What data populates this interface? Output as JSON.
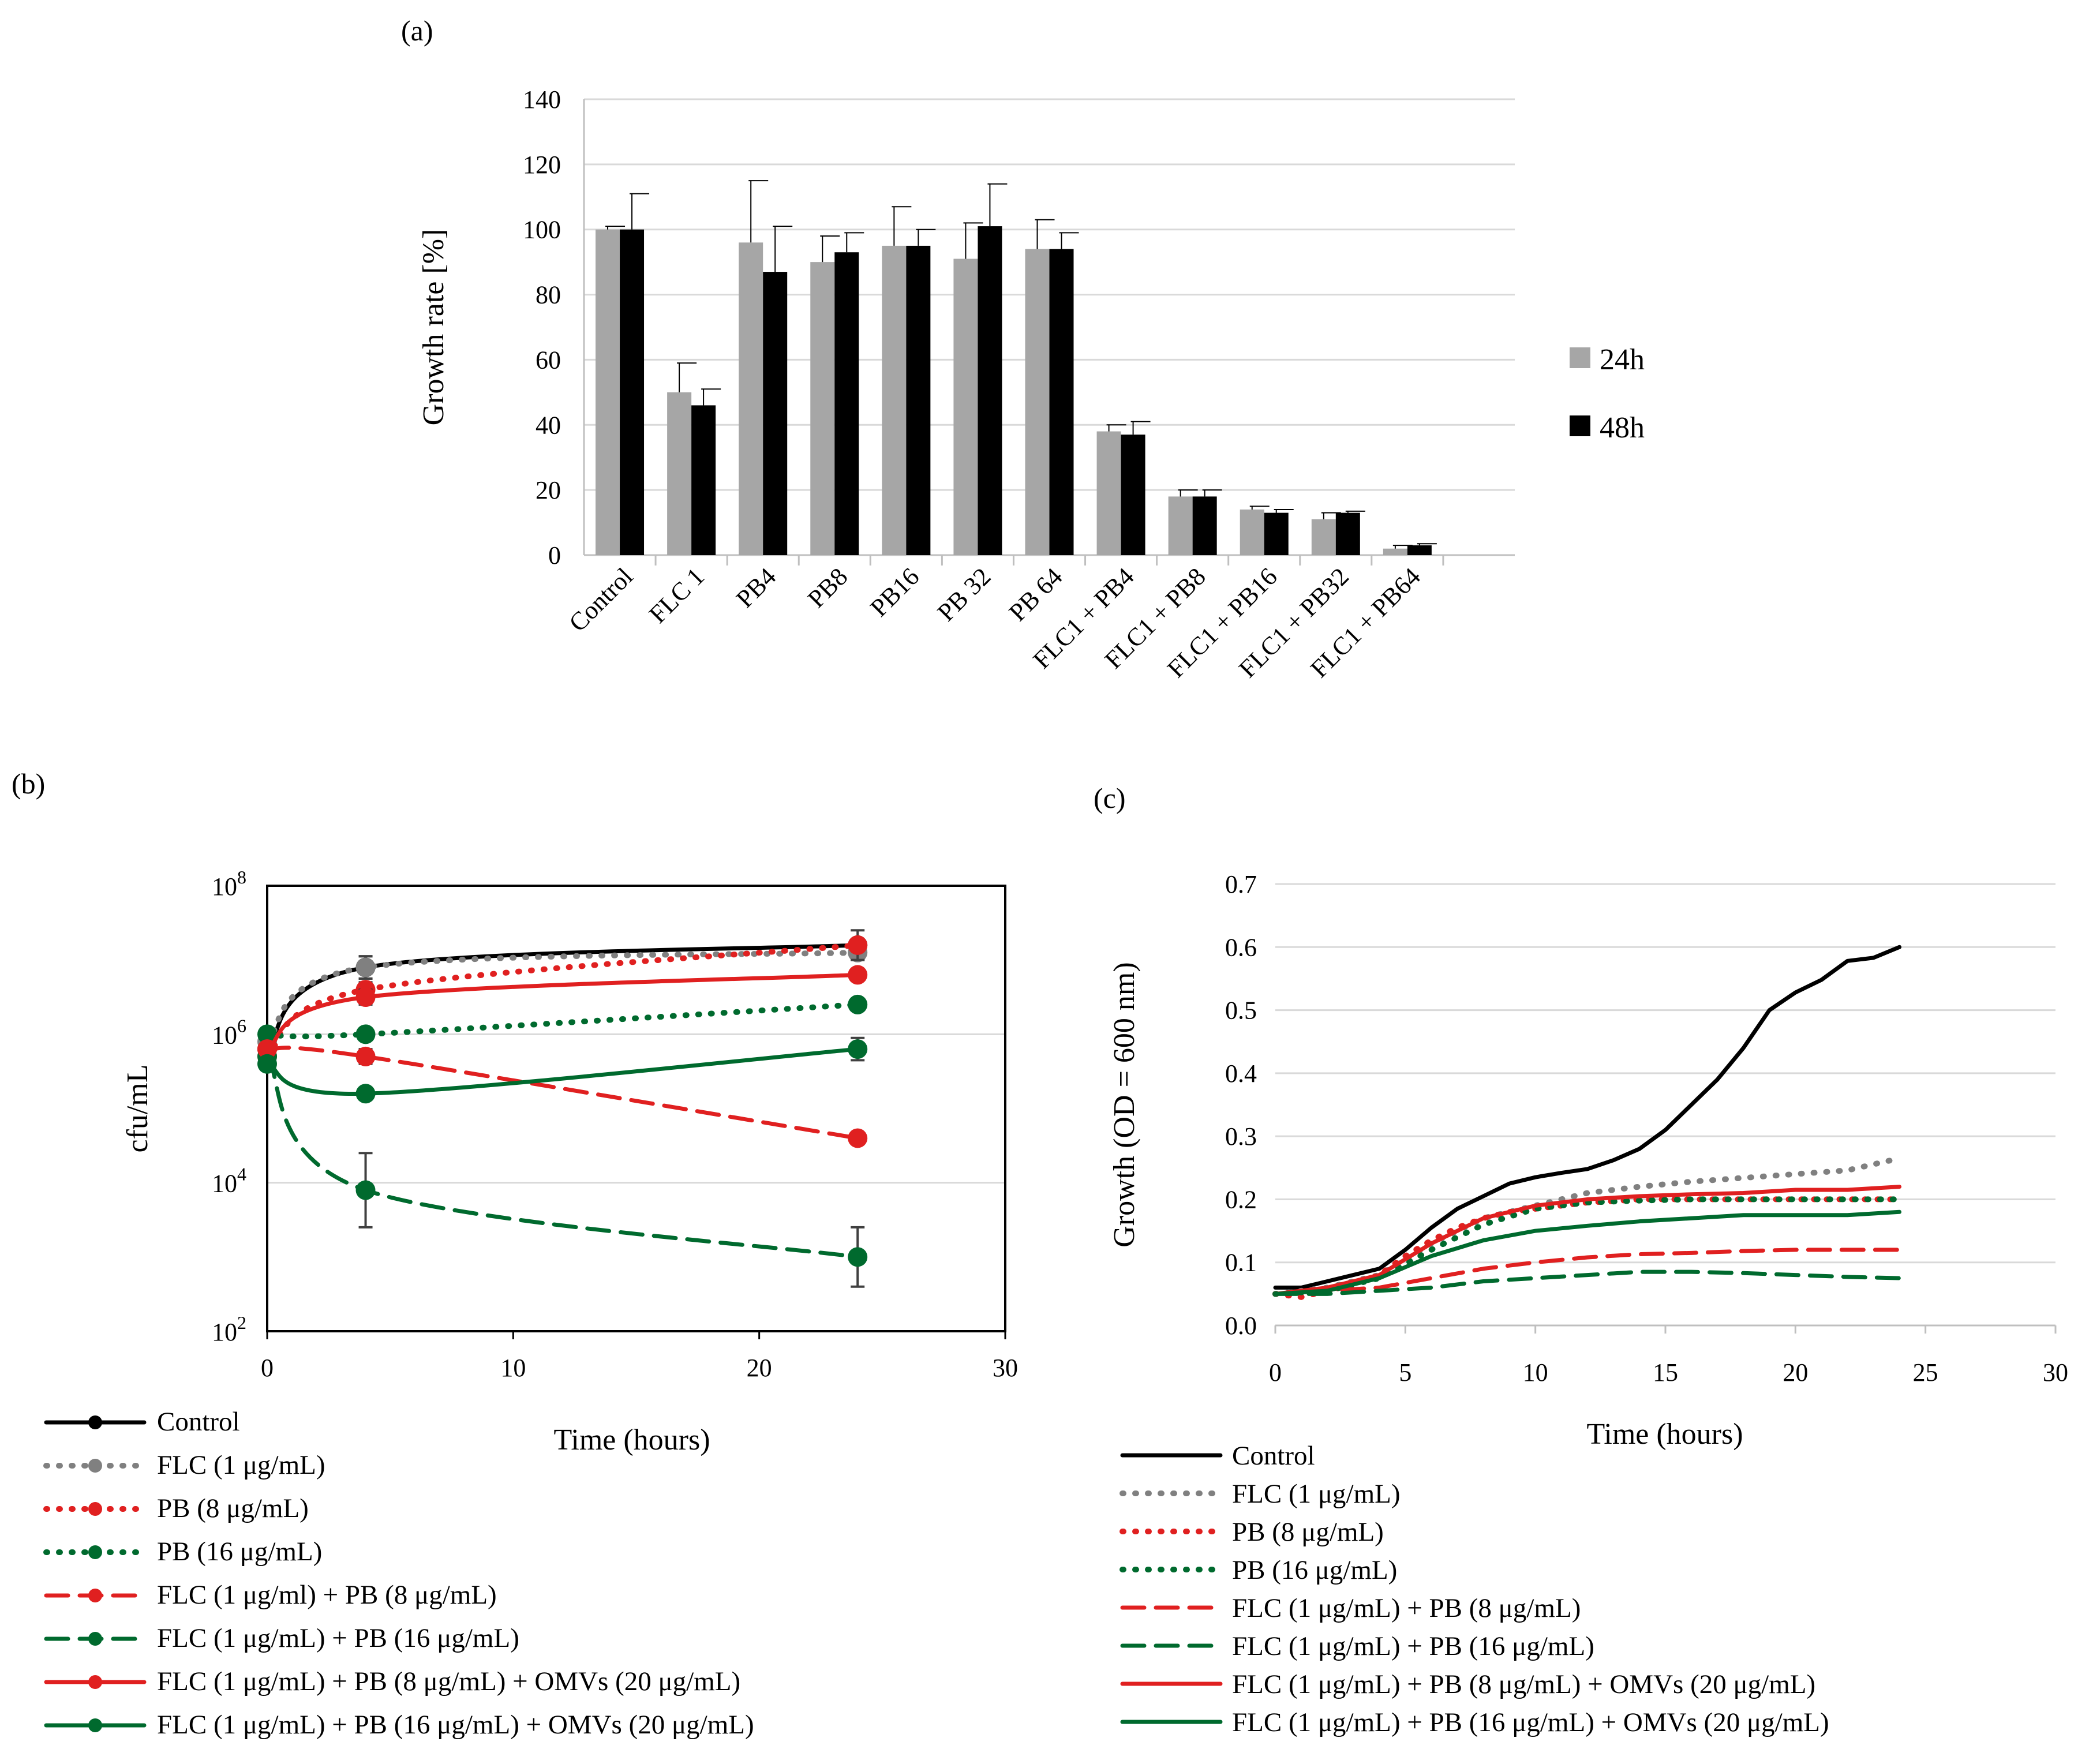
{
  "chart_data": [
    {
      "panel": "(a)",
      "type": "bar",
      "title": "",
      "xlabel": "",
      "ylabel": "Growth rate [%]",
      "ylim": [
        0,
        140
      ],
      "yticks": [
        0,
        20,
        40,
        60,
        80,
        100,
        120,
        140
      ],
      "categories": [
        "Control",
        "FLC 1",
        "PB4",
        "PB8",
        "PB16",
        "PB 32",
        "PB 64",
        "FLC1 + PB4",
        "FLC1 + PB8",
        "FLC1 + PB16",
        "FLC1 + PB32",
        "FLC1 + PB64"
      ],
      "series": [
        {
          "name": "24h",
          "color": "#a6a6a6",
          "values": [
            100,
            50,
            96,
            90,
            95,
            91,
            94,
            38,
            18,
            14,
            11,
            2
          ],
          "errors": [
            1,
            9,
            19,
            8,
            12,
            11,
            9,
            2,
            2,
            1,
            2,
            1
          ]
        },
        {
          "name": "48h",
          "color": "#000000",
          "values": [
            100,
            46,
            87,
            93,
            95,
            101,
            94,
            37,
            18,
            13,
            13,
            3
          ],
          "errors": [
            11,
            5,
            14,
            6,
            5,
            13,
            5,
            4,
            2,
            1,
            0.5,
            0.5
          ]
        }
      ],
      "legend_position": "right"
    },
    {
      "panel": "(b)",
      "type": "line",
      "title": "",
      "xlabel": "Time (hours)",
      "ylabel": "cfu/mL",
      "xlim": [
        0,
        30
      ],
      "xticks": [
        0,
        10,
        20,
        30
      ],
      "yscale": "log",
      "ylim_exp": [
        2,
        8
      ],
      "yticks_exp": [
        2,
        4,
        6,
        8
      ],
      "ytick_labels": [
        {
          "base": "10",
          "exp": "2"
        },
        {
          "base": "10",
          "exp": "4"
        },
        {
          "base": "10",
          "exp": "6"
        },
        {
          "base": "10",
          "exp": "8"
        }
      ],
      "series": [
        {
          "name": "Control",
          "color": "#000000",
          "style": "solid",
          "x": [
            0,
            4,
            24
          ],
          "y_log10": [
            5.8,
            6.9,
            7.2
          ],
          "err_log": [
            0,
            0.15,
            0
          ]
        },
        {
          "name": "FLC (1 μg/mL)",
          "color": "#808080",
          "style": "dotted",
          "x": [
            0,
            4,
            24
          ],
          "y_log10": [
            5.9,
            6.9,
            7.1
          ],
          "err_log": [
            0,
            0.15,
            0.1
          ]
        },
        {
          "name": "PB (8 μg/mL)",
          "color": "#e02020",
          "style": "dotted",
          "x": [
            0,
            4,
            24
          ],
          "y_log10": [
            5.7,
            6.6,
            7.2
          ],
          "err_log": [
            0,
            0.1,
            0.2
          ]
        },
        {
          "name": "PB (16 μg/mL)",
          "color": "#006a2e",
          "style": "dotted",
          "x": [
            0,
            4,
            24
          ],
          "y_log10": [
            6.0,
            6.0,
            6.4
          ],
          "err_log": [
            0,
            0,
            0
          ]
        },
        {
          "name": "FLC (1 μg/ml) + PB (8 μg/mL)",
          "color": "#e02020",
          "style": "dashed",
          "x": [
            0,
            4,
            24
          ],
          "y_log10": [
            5.8,
            5.7,
            4.6
          ],
          "err_log": [
            0,
            0.1,
            0
          ]
        },
        {
          "name": "FLC (1 μg/mL) + PB (16 μg/mL)",
          "color": "#006a2e",
          "style": "dashed",
          "x": [
            0,
            4,
            24
          ],
          "y_log10": [
            5.7,
            3.9,
            3.0
          ],
          "err_log": [
            0,
            0.5,
            0.4
          ]
        },
        {
          "name": "FLC (1 μg/mL) + PB (8 μg/mL) + OMVs (20 μg/mL)",
          "color": "#e02020",
          "style": "solid",
          "x": [
            0,
            4,
            24
          ],
          "y_log10": [
            5.8,
            6.5,
            6.8
          ],
          "err_log": [
            0,
            0.1,
            0
          ]
        },
        {
          "name": "FLC (1 μg/mL) + PB (16 μg/mL) + OMVs (20 μg/mL)",
          "color": "#006a2e",
          "style": "solid",
          "x": [
            0,
            4,
            24
          ],
          "y_log10": [
            5.6,
            5.2,
            5.8
          ],
          "err_log": [
            0,
            0,
            0.15
          ]
        }
      ]
    },
    {
      "panel": "(c)",
      "type": "line",
      "title": "",
      "xlabel": "Time (hours)",
      "ylabel": "Growth (OD = 600 nm)",
      "xlim": [
        0,
        30
      ],
      "xticks": [
        0,
        5,
        10,
        15,
        20,
        25,
        30
      ],
      "ylim": [
        0,
        0.7
      ],
      "yticks": [
        0.0,
        0.1,
        0.2,
        0.3,
        0.4,
        0.5,
        0.6,
        0.7
      ],
      "ytick_labels": [
        "0.0",
        "0.1",
        "0.2",
        "0.3",
        "0.4",
        "0.5",
        "0.6",
        "0.7"
      ],
      "series": [
        {
          "name": "Control",
          "color": "#000000",
          "style": "solid",
          "x": [
            0,
            1,
            2,
            3,
            4,
            5,
            6,
            7,
            8,
            9,
            10,
            11,
            12,
            13,
            14,
            15,
            16,
            17,
            18,
            19,
            20,
            21,
            22,
            23,
            24
          ],
          "y": [
            0.06,
            0.06,
            0.07,
            0.08,
            0.09,
            0.12,
            0.155,
            0.185,
            0.205,
            0.225,
            0.235,
            0.242,
            0.248,
            0.262,
            0.28,
            0.31,
            0.35,
            0.39,
            0.44,
            0.5,
            0.528,
            0.548,
            0.578,
            0.583,
            0.6
          ]
        },
        {
          "name": "FLC (1 μg/mL)",
          "color": "#808080",
          "style": "dotted",
          "x": [
            0,
            2,
            4,
            6,
            8,
            10,
            12,
            14,
            16,
            18,
            20,
            22,
            24
          ],
          "y": [
            0.05,
            0.06,
            0.08,
            0.13,
            0.17,
            0.19,
            0.21,
            0.22,
            0.228,
            0.234,
            0.24,
            0.246,
            0.265
          ]
        },
        {
          "name": "PB (8 μg/mL)",
          "color": "#e02020",
          "style": "dotted",
          "x": [
            0,
            1,
            2,
            3,
            4,
            5,
            6,
            7,
            8,
            9,
            10,
            11,
            12,
            13,
            14,
            15,
            16,
            17,
            18,
            19,
            20,
            21,
            22,
            23,
            24
          ],
          "y": [
            0.05,
            0.045,
            0.055,
            0.065,
            0.08,
            0.11,
            0.135,
            0.155,
            0.17,
            0.18,
            0.185,
            0.19,
            0.195,
            0.197,
            0.2,
            0.2,
            0.2,
            0.2,
            0.2,
            0.2,
            0.2,
            0.2,
            0.2,
            0.2,
            0.2
          ]
        },
        {
          "name": "PB (16 μg/mL)",
          "color": "#006a2e",
          "style": "dotted",
          "x": [
            0,
            2,
            4,
            6,
            8,
            10,
            12,
            14,
            16,
            18,
            20,
            22,
            24
          ],
          "y": [
            0.05,
            0.055,
            0.075,
            0.12,
            0.16,
            0.185,
            0.195,
            0.198,
            0.2,
            0.2,
            0.2,
            0.2,
            0.2
          ]
        },
        {
          "name": "FLC (1 μg/mL) + PB (8 μg/mL)",
          "color": "#e02020",
          "style": "dashed",
          "x": [
            0,
            2,
            4,
            6,
            8,
            10,
            12,
            14,
            16,
            18,
            20,
            22,
            24
          ],
          "y": [
            0.05,
            0.055,
            0.06,
            0.075,
            0.09,
            0.1,
            0.108,
            0.113,
            0.115,
            0.118,
            0.12,
            0.12,
            0.12
          ]
        },
        {
          "name": "FLC (1 μg/mL) + PB (16 μg/mL)",
          "color": "#006a2e",
          "style": "dashed",
          "x": [
            0,
            2,
            4,
            6,
            8,
            10,
            12,
            14,
            16,
            18,
            20,
            22,
            24
          ],
          "y": [
            0.05,
            0.05,
            0.055,
            0.06,
            0.07,
            0.075,
            0.08,
            0.085,
            0.085,
            0.083,
            0.08,
            0.077,
            0.075
          ]
        },
        {
          "name": "FLC (1 μg/mL) + PB (8 μg/mL) + OMVs (20 μg/mL)",
          "color": "#e02020",
          "style": "solid",
          "x": [
            0,
            2,
            4,
            6,
            8,
            10,
            12,
            14,
            16,
            18,
            20,
            22,
            24
          ],
          "y": [
            0.05,
            0.06,
            0.08,
            0.13,
            0.17,
            0.19,
            0.2,
            0.205,
            0.208,
            0.21,
            0.215,
            0.215,
            0.22
          ]
        },
        {
          "name": "FLC (1 μg/mL) + PB (16 μg/mL) + OMVs (20 μg/mL)",
          "color": "#006a2e",
          "style": "solid",
          "x": [
            0,
            2,
            4,
            6,
            8,
            10,
            12,
            14,
            16,
            18,
            20,
            22,
            24
          ],
          "y": [
            0.05,
            0.055,
            0.075,
            0.11,
            0.135,
            0.15,
            0.158,
            0.165,
            0.17,
            0.175,
            0.175,
            0.175,
            0.18
          ]
        }
      ]
    }
  ]
}
